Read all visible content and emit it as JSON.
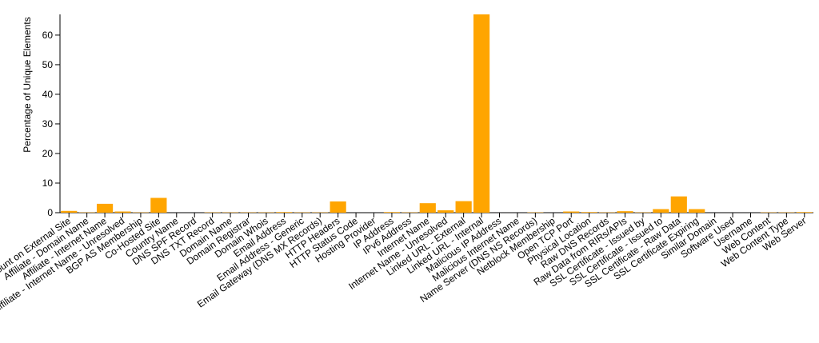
{
  "chart_data": {
    "type": "bar",
    "title": "",
    "xlabel": "",
    "ylabel": "Percentage of Unique Elements",
    "ylim": [
      0,
      67
    ],
    "yticks": [
      0,
      10,
      20,
      30,
      40,
      50,
      60
    ],
    "grid": false,
    "bar_color": "#ffa500",
    "categories": [
      "Account on External Site",
      "Affiliate - Domain Name",
      "Affiliate - Internet Name",
      "Affiliate - Internet Name - Unresolved",
      "BGP AS Membership",
      "Co-Hosted Site",
      "Country Name",
      "DNS SPF Record",
      "DNS TXT Record",
      "Domain Name",
      "Domain Registrar",
      "Domain Whois",
      "Email Address",
      "Email Address - Generic",
      "Email Gateway (DNS MX Records)",
      "HTTP Headers",
      "HTTP Status Code",
      "Hosting Provider",
      "IP Address",
      "IPv6 Address",
      "Internet Name",
      "Internet Name - Unresolved",
      "Linked URL - External",
      "Linked URL - Internal",
      "Malicious IP Address",
      "Malicious Internet Name",
      "Name Server (DNS NS Records)",
      "Netblock Membership",
      "Open TCP Port",
      "Physical Location",
      "Raw DNS Records",
      "Raw Data from RIRs/APIs",
      "SSL Certificate - Issued by",
      "SSL Certificate - Issued to",
      "SSL Certificate - Raw Data",
      "SSL Certificate Expiring",
      "Similar Domain",
      "Software Used",
      "Username",
      "Web Content",
      "Web Content Type",
      "Web Server"
    ],
    "values": [
      0.6,
      0.1,
      3.0,
      0.4,
      0.1,
      5.0,
      0.0,
      0.0,
      0.1,
      0.1,
      0.1,
      0.1,
      0.2,
      0.1,
      0.1,
      3.8,
      0.0,
      0.0,
      0.2,
      0.1,
      3.2,
      0.8,
      3.9,
      67.0,
      0.0,
      0.0,
      0.1,
      0.0,
      0.4,
      0.2,
      0.1,
      0.5,
      0.1,
      1.2,
      5.5,
      1.2,
      0.0,
      0.0,
      0.0,
      0.1,
      0.1,
      0.2
    ]
  }
}
